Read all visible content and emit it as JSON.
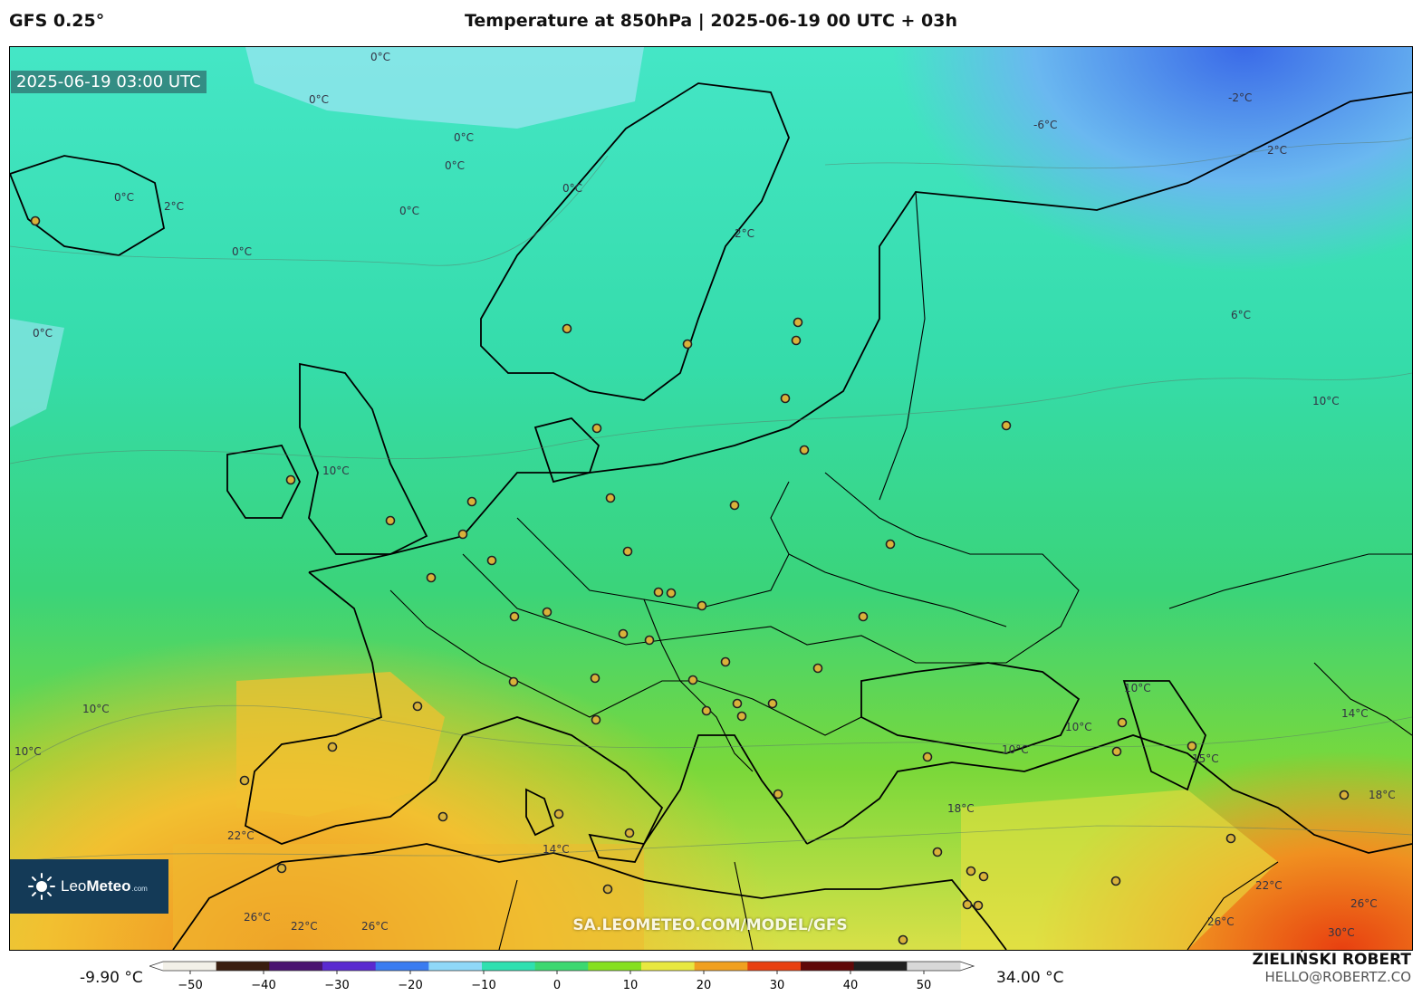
{
  "header": {
    "model": "GFS 0.25°",
    "title": "Temperature at 850hPa | 2025-06-19 00 UTC + 03h"
  },
  "map": {
    "timestamp": "2025-06-19 03:00 UTC",
    "watermark": "SA.LEOMETEO.COM/MODEL/GFS",
    "logo": {
      "brand_a": "Leo",
      "brand_b": "Meteo",
      "suffix": ".com",
      "icon": "sun-icon"
    },
    "contour_labels": [
      "0°C",
      "0°C",
      "0°C",
      "0°C",
      "0°C",
      "0°C",
      "0°C",
      "0°C",
      "0°C",
      "2°C",
      "-6°C",
      "-2°C",
      "2°C",
      "2°C",
      "6°C",
      "10°C",
      "10°C",
      "10°C",
      "10°C",
      "10°C",
      "10°C",
      "10°C",
      "14°C",
      "14°C",
      "15°C",
      "18°C",
      "18°C",
      "22°C",
      "22°C",
      "22°C",
      "26°C",
      "26°C",
      "26°C",
      "26°C",
      "30°C"
    ]
  },
  "colorbar": {
    "min_label": "-9.90 °C",
    "max_label": "34.00 °C",
    "ticks": [
      "−50",
      "−40",
      "−30",
      "−20",
      "−10",
      "0",
      "10",
      "20",
      "30",
      "40",
      "50"
    ],
    "colors": [
      "#f2f0e8",
      "#3a1e10",
      "#4a1470",
      "#5a2ad0",
      "#3a7cf0",
      "#8fd8f8",
      "#2fe0b0",
      "#3cd870",
      "#86e020",
      "#e8e840",
      "#f0a020",
      "#e84010",
      "#600808",
      "#202020",
      "#d8d8d8"
    ]
  },
  "footer": {
    "author": "ZIELIŃSKI ROBERT",
    "email": "HELLO@ROBERTZ.CO"
  }
}
